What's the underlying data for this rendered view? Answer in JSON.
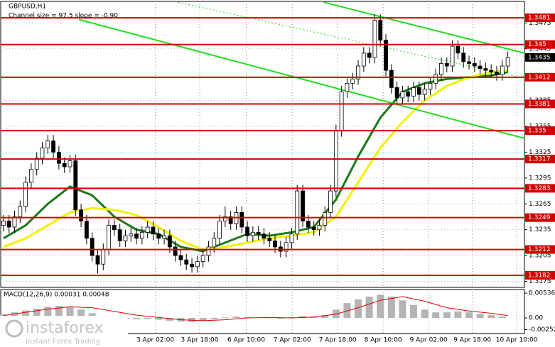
{
  "chart_data": {
    "type": "candlestick",
    "title": "GBPUSD,H1",
    "subtitle": "Channel size = 97.5 slope = -0.90",
    "ohlc": [
      [
        1.324,
        1.3252,
        1.3233,
        1.3245
      ],
      [
        1.3245,
        1.3252,
        1.3231,
        1.3238
      ],
      [
        1.3238,
        1.3257,
        1.3231,
        1.325
      ],
      [
        1.325,
        1.3269,
        1.3243,
        1.3262
      ],
      [
        1.3262,
        1.3297,
        1.3255,
        1.329
      ],
      [
        1.329,
        1.3312,
        1.3283,
        1.3305
      ],
      [
        1.3305,
        1.3325,
        1.3298,
        1.3318
      ],
      [
        1.3318,
        1.3337,
        1.3311,
        1.333
      ],
      [
        1.333,
        1.3345,
        1.3323,
        1.3338
      ],
      [
        1.3338,
        1.3345,
        1.3318,
        1.3325
      ],
      [
        1.3325,
        1.3332,
        1.3305,
        1.3312
      ],
      [
        1.3312,
        1.3319,
        1.3301,
        1.3308
      ],
      [
        1.3308,
        1.3322,
        1.3301,
        1.3315
      ],
      [
        1.3315,
        1.3322,
        1.3251,
        1.3258
      ],
      [
        1.3258,
        1.3265,
        1.3238,
        1.3245
      ],
      [
        1.3245,
        1.3252,
        1.3218,
        1.3225
      ],
      [
        1.3225,
        1.3232,
        1.3198,
        1.3205
      ],
      [
        1.3205,
        1.3212,
        1.3184,
        1.3195
      ],
      [
        1.3195,
        1.3219,
        1.3188,
        1.3212
      ],
      [
        1.3212,
        1.3247,
        1.3205,
        1.324
      ],
      [
        1.324,
        1.3247,
        1.3228,
        1.3235
      ],
      [
        1.3235,
        1.3242,
        1.3215,
        1.3222
      ],
      [
        1.3222,
        1.3235,
        1.3215,
        1.3228
      ],
      [
        1.3228,
        1.3237,
        1.3221,
        1.323
      ],
      [
        1.323,
        1.3237,
        1.3218,
        1.3225
      ],
      [
        1.3225,
        1.3239,
        1.3218,
        1.3232
      ],
      [
        1.3232,
        1.3245,
        1.3225,
        1.3238
      ],
      [
        1.3238,
        1.3245,
        1.3223,
        1.323
      ],
      [
        1.323,
        1.3237,
        1.3218,
        1.3225
      ],
      [
        1.3225,
        1.3235,
        1.3218,
        1.3228
      ],
      [
        1.3228,
        1.3235,
        1.3208,
        1.3215
      ],
      [
        1.3215,
        1.3222,
        1.3198,
        1.3205
      ],
      [
        1.3205,
        1.3212,
        1.3193,
        1.32
      ],
      [
        1.32,
        1.3207,
        1.3188,
        1.3195
      ],
      [
        1.3195,
        1.3202,
        1.3185,
        1.3192
      ],
      [
        1.3192,
        1.3205,
        1.3185,
        1.3198
      ],
      [
        1.3198,
        1.3212,
        1.3191,
        1.3205
      ],
      [
        1.3205,
        1.3222,
        1.3198,
        1.3215
      ],
      [
        1.3215,
        1.3232,
        1.3208,
        1.3225
      ],
      [
        1.3225,
        1.3252,
        1.3218,
        1.3245
      ],
      [
        1.3245,
        1.3262,
        1.3238,
        1.325
      ],
      [
        1.325,
        1.3257,
        1.3235,
        1.3242
      ],
      [
        1.3242,
        1.3262,
        1.3235,
        1.3255
      ],
      [
        1.3255,
        1.3262,
        1.3231,
        1.3238
      ],
      [
        1.3238,
        1.3245,
        1.3221,
        1.3228
      ],
      [
        1.3228,
        1.3239,
        1.3221,
        1.3232
      ],
      [
        1.3232,
        1.3239,
        1.3223,
        1.323
      ],
      [
        1.323,
        1.3237,
        1.3218,
        1.3225
      ],
      [
        1.3225,
        1.3232,
        1.3215,
        1.3222
      ],
      [
        1.3222,
        1.3229,
        1.3208,
        1.3215
      ],
      [
        1.3215,
        1.3222,
        1.3203,
        1.321
      ],
      [
        1.321,
        1.3227,
        1.3203,
        1.322
      ],
      [
        1.322,
        1.3237,
        1.3213,
        1.323
      ],
      [
        1.323,
        1.3287,
        1.3223,
        1.328
      ],
      [
        1.328,
        1.3287,
        1.3238,
        1.3245
      ],
      [
        1.3245,
        1.3252,
        1.3231,
        1.3238
      ],
      [
        1.3238,
        1.3245,
        1.3228,
        1.3235
      ],
      [
        1.3235,
        1.3247,
        1.3228,
        1.324
      ],
      [
        1.324,
        1.3262,
        1.3233,
        1.3255
      ],
      [
        1.3255,
        1.3287,
        1.3248,
        1.328
      ],
      [
        1.328,
        1.3357,
        1.3273,
        1.335
      ],
      [
        1.335,
        1.3402,
        1.3343,
        1.3395
      ],
      [
        1.3395,
        1.3412,
        1.3388,
        1.3405
      ],
      [
        1.3405,
        1.3417,
        1.3398,
        1.341
      ],
      [
        1.341,
        1.3432,
        1.3403,
        1.3425
      ],
      [
        1.3425,
        1.3447,
        1.3418,
        1.344
      ],
      [
        1.344,
        1.3447,
        1.3428,
        1.3435
      ],
      [
        1.3435,
        1.3485,
        1.3428,
        1.3478
      ],
      [
        1.3478,
        1.3485,
        1.3448,
        1.3455
      ],
      [
        1.3455,
        1.3462,
        1.3413,
        1.342
      ],
      [
        1.342,
        1.3427,
        1.3393,
        1.34
      ],
      [
        1.34,
        1.3407,
        1.3381,
        1.3388
      ],
      [
        1.3388,
        1.3402,
        1.3381,
        1.3395
      ],
      [
        1.3395,
        1.3402,
        1.3383,
        1.339
      ],
      [
        1.339,
        1.3407,
        1.3383,
        1.34
      ],
      [
        1.34,
        1.3407,
        1.3385,
        1.3392
      ],
      [
        1.3392,
        1.3405,
        1.3385,
        1.3398
      ],
      [
        1.3398,
        1.3412,
        1.3391,
        1.3405
      ],
      [
        1.3405,
        1.3422,
        1.3398,
        1.3415
      ],
      [
        1.3415,
        1.3435,
        1.3408,
        1.3428
      ],
      [
        1.3428,
        1.3435,
        1.3418,
        1.3425
      ],
      [
        1.3425,
        1.3455,
        1.3418,
        1.3448
      ],
      [
        1.3448,
        1.3455,
        1.3433,
        1.344
      ],
      [
        1.344,
        1.3447,
        1.3423,
        1.343
      ],
      [
        1.343,
        1.3437,
        1.3421,
        1.3428
      ],
      [
        1.3428,
        1.3435,
        1.3418,
        1.3425
      ],
      [
        1.3425,
        1.3432,
        1.3415,
        1.3422
      ],
      [
        1.3422,
        1.3429,
        1.3413,
        1.342
      ],
      [
        1.342,
        1.3427,
        1.3411,
        1.3418
      ],
      [
        1.3418,
        1.3425,
        1.3408,
        1.3415
      ],
      [
        1.3415,
        1.3432,
        1.3408,
        1.3425
      ],
      [
        1.3425,
        1.3442,
        1.3418,
        1.3435
      ]
    ],
    "ylim": [
      1.3168,
      1.35
    ],
    "yticks": [
      1.3475,
      1.3445,
      1.3385,
      1.3355,
      1.3325,
      1.3295,
      1.3265,
      1.3235,
      1.3205,
      1.3175
    ],
    "xlim": [
      -0.5,
      94
    ],
    "xticks": [
      {
        "value": 27.4,
        "label": "3 Apr 02:00"
      },
      {
        "value": 35.4,
        "label": "3 Apr 18:00"
      },
      {
        "value": 43.8,
        "label": "6 Apr 10:00"
      },
      {
        "value": 52.1,
        "label": "7 Apr 02:00"
      },
      {
        "value": 60.3,
        "label": "7 Apr 18:00"
      },
      {
        "value": 68.5,
        "label": "8 Apr 10:00"
      },
      {
        "value": 76.7,
        "label": "9 Apr 02:00"
      },
      {
        "value": 84.6,
        "label": "9 Apr 18:00"
      },
      {
        "value": 92.6,
        "label": "10 Apr 10:00"
      }
    ],
    "grid": true,
    "levels": {
      "color": "#d40000",
      "values": [
        1.3481,
        1.345,
        1.3412,
        1.3381,
        1.335,
        1.3317,
        1.3283,
        1.3249,
        1.3212,
        1.3182
      ]
    },
    "current_price": 1.3435,
    "series": [
      {
        "color": "#1a7a1a",
        "x": [
          0,
          4,
          8,
          12,
          16,
          20,
          24,
          28,
          32,
          36,
          40,
          44,
          48,
          52,
          56,
          60,
          64,
          68,
          72,
          76,
          80,
          84,
          88,
          91
        ],
        "values": [
          1.3225,
          1.324,
          1.3265,
          1.3285,
          1.3275,
          1.325,
          1.3235,
          1.323,
          1.3215,
          1.321,
          1.322,
          1.323,
          1.3228,
          1.3232,
          1.3238,
          1.327,
          1.332,
          1.3365,
          1.3395,
          1.3405,
          1.341,
          1.3412,
          1.3414,
          1.3418
        ]
      },
      {
        "color": "#f2f200",
        "x": [
          0,
          4,
          8,
          12,
          16,
          20,
          24,
          28,
          32,
          36,
          40,
          44,
          48,
          52,
          56,
          60,
          64,
          68,
          72,
          76,
          80,
          84,
          88,
          91
        ],
        "values": [
          1.3215,
          1.3225,
          1.324,
          1.3255,
          1.326,
          1.3258,
          1.3252,
          1.3238,
          1.3222,
          1.3212,
          1.3215,
          1.322,
          1.3225,
          1.3228,
          1.3232,
          1.325,
          1.329,
          1.333,
          1.336,
          1.3385,
          1.3402,
          1.3412,
          1.3418,
          1.342
        ]
      }
    ],
    "trendlines": [
      {
        "color": "#22dd22",
        "x": [
          13.6,
          94
        ],
        "values": [
          1.3479,
          1.3341
        ]
      },
      {
        "color": "#22dd22",
        "x": [
          57.8,
          94
        ],
        "values": [
          1.3499,
          1.344
        ]
      },
      {
        "color": "#22dd22",
        "dashed": true,
        "x": [
          31.5,
          94
        ],
        "values": [
          1.3499,
          1.3411
        ]
      }
    ],
    "macd": {
      "label": "MACD(12,26,9) 0.00031 0.00048",
      "ylim": [
        -0.00337,
        0.00613
      ],
      "yticks": [
        0.00536,
        {
          "value": 0,
          "label": "0.00"
        },
        -0.00252
      ],
      "histogram": {
        "color": "#b4b4b4",
        "x": [
          0,
          2,
          4,
          6,
          8,
          10,
          12,
          14,
          16,
          18,
          20,
          22,
          24,
          26,
          28,
          30,
          32,
          34,
          36,
          38,
          40,
          42,
          44,
          46,
          48,
          50,
          52,
          54,
          56,
          58,
          60,
          62,
          64,
          66,
          68,
          70,
          72,
          74,
          76,
          78,
          80,
          82,
          84,
          86,
          88,
          90
        ],
        "values": [
          0.0008,
          0.0012,
          0.0016,
          0.002,
          0.0024,
          0.0026,
          0.0024,
          0.0018,
          0.001,
          0.0004,
          0.0002,
          -0.0002,
          -0.0003,
          -0.0002,
          -0.0004,
          -0.0006,
          -0.0008,
          -0.0009,
          -0.0007,
          -0.0003,
          0.0001,
          0.0003,
          0.0002,
          0.0001,
          -0.0001,
          -0.0002,
          0.0002,
          0.0004,
          0.0003,
          0.0006,
          0.0018,
          0.0032,
          0.004,
          0.0046,
          0.005,
          0.0046,
          0.0038,
          0.0028,
          0.0018,
          0.0012,
          0.0012,
          0.0014,
          0.0012,
          0.0009,
          0.0006,
          0.0003
        ]
      },
      "signal": {
        "color": "#e00000",
        "x": [
          0,
          4,
          8,
          12,
          16,
          20,
          24,
          28,
          32,
          36,
          40,
          44,
          48,
          52,
          56,
          60,
          64,
          68,
          72,
          76,
          80,
          84,
          88,
          91
        ],
        "values": [
          0.0005,
          0.0012,
          0.0019,
          0.0024,
          0.0022,
          0.0014,
          0.0006,
          0.0001,
          -0.0004,
          -0.0006,
          -0.0004,
          0.0,
          0.0001,
          0.0,
          0.0002,
          0.0008,
          0.0022,
          0.0038,
          0.0046,
          0.0036,
          0.0022,
          0.0015,
          0.001,
          0.0005
        ]
      }
    },
    "watermark": {
      "brand": "instaforex",
      "tagline": "Instant Forex Trading"
    }
  }
}
